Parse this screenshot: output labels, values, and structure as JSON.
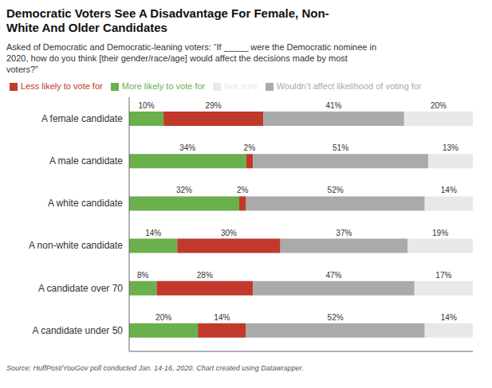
{
  "chart_data": {
    "type": "bar",
    "orientation": "horizontal",
    "stacked": true,
    "title": "Democratic Voters See A Disadvantage For Female, Non-\nWhite And Older Candidates",
    "subtitle": "Asked of Democratic and Democratic-leaning voters: “If _____ were the Democratic nominee in\n2020, how do you think [their gender/race/age] would affect the decisions made by most\nvoters?”",
    "annotations": [
      "Source: HuffPost/YouGov poll conducted Jan. 14-16, 2020. Chart created using Datawrapper."
    ],
    "categories": [
      "A female candidate",
      "A male candidate",
      "A white candidate",
      "A non-white candidate",
      "A candidate over 70",
      "A candidate under 50"
    ],
    "series": [
      {
        "name": "More likely to vote for",
        "color": "#6ab04c",
        "values": [
          10,
          34,
          32,
          14,
          8,
          20
        ],
        "value_labels": [
          "10%",
          "34%",
          "32%",
          "14%",
          "8%",
          "20%"
        ]
      },
      {
        "name": "Less likely to vote for",
        "color": "#c0392b",
        "values": [
          29,
          2,
          2,
          30,
          28,
          14
        ],
        "value_labels": [
          "29%",
          "2%",
          "2%",
          "30%",
          "28%",
          "14%"
        ]
      },
      {
        "name": "Wouldn’t affect likelihood of voting for",
        "color": "#aaaaaa",
        "values": [
          41,
          51,
          52,
          37,
          47,
          52
        ],
        "value_labels": [
          "41%",
          "51%",
          "52%",
          "37%",
          "47%",
          "52%"
        ]
      },
      {
        "name": "Not sure",
        "color": "#e8e8e8",
        "values": [
          20,
          13,
          14,
          19,
          17,
          14
        ],
        "value_labels": [
          "20%",
          "13%",
          "14%",
          "19%",
          "17%",
          "14%"
        ]
      }
    ],
    "xlim": [
      0,
      100
    ],
    "data_labels": true,
    "tick_labels": "y",
    "legend": "top",
    "grid": false
  }
}
